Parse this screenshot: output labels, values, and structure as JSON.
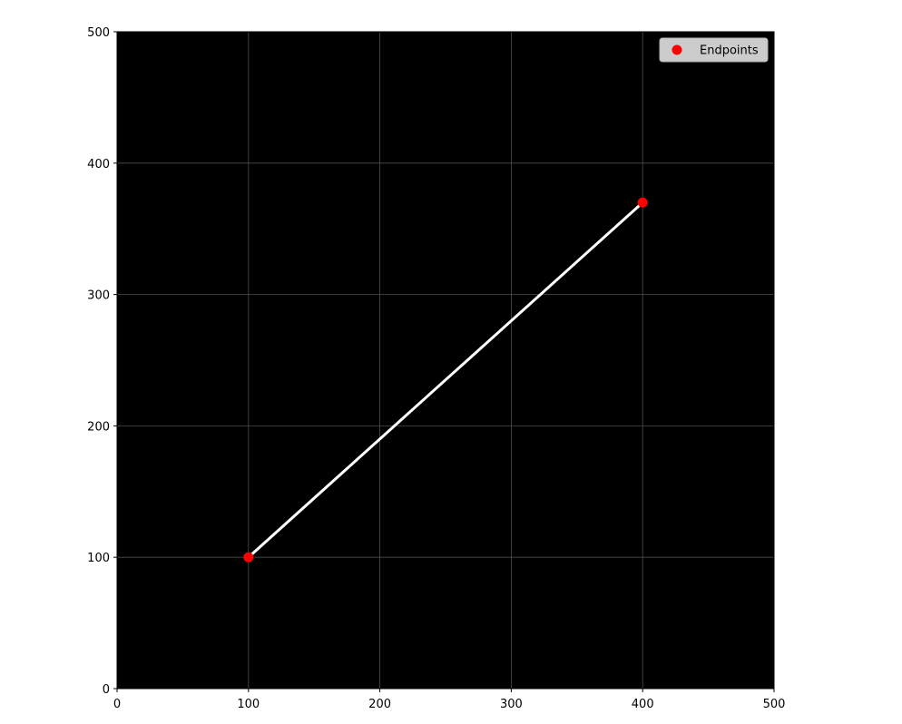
{
  "chart_data": {
    "type": "scatter",
    "title": "",
    "xlabel": "",
    "ylabel": "",
    "xlim": [
      0,
      500
    ],
    "ylim": [
      0,
      500
    ],
    "xticks": [
      0,
      100,
      200,
      300,
      400,
      500
    ],
    "yticks": [
      0,
      100,
      200,
      300,
      400,
      500
    ],
    "grid": true,
    "background": "#000000",
    "grid_color": "#4d4d4d",
    "legend_position": "top-right",
    "series": [
      {
        "kind": "line",
        "color": "#ffffff",
        "x": [
          100,
          400
        ],
        "y": [
          100,
          370
        ]
      },
      {
        "kind": "scatter",
        "name": "Endpoints",
        "color": "#ff0000",
        "x": [
          100,
          400
        ],
        "y": [
          100,
          370
        ]
      }
    ]
  }
}
